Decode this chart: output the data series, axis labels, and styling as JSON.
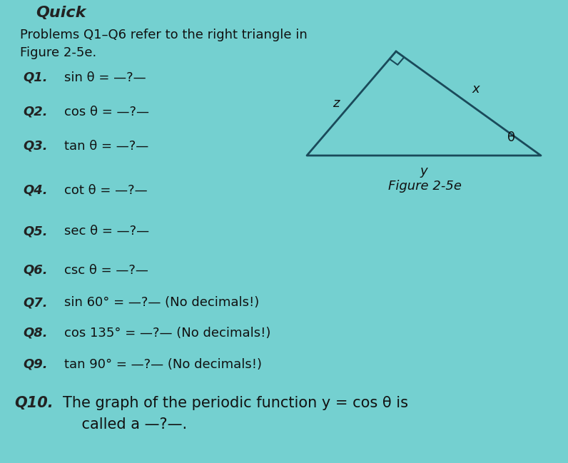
{
  "background_color": "#74d0d0",
  "intro_line1": "Problems Q1–Q6 refer to the right triangle in",
  "intro_line2": "Figure 2-5e.",
  "questions": [
    {
      "label": "Q1.",
      "text": "sin θ = —?—"
    },
    {
      "label": "Q2.",
      "text": "cos θ = —?—"
    },
    {
      "label": "Q3.",
      "text": "tan θ = —?—"
    },
    {
      "label": "Q4.",
      "text": "cot θ = —?—"
    },
    {
      "label": "Q5.",
      "text": "sec θ = —?—"
    },
    {
      "label": "Q6.",
      "text": "csc θ = —?—"
    },
    {
      "label": "Q7.",
      "text": "sin 60° = —?— (No decimals!)"
    },
    {
      "label": "Q8.",
      "text": "cos 135° = —?— (No decimals!)"
    },
    {
      "label": "Q9.",
      "text": "tan 90° = —?— (No decimals!)"
    },
    {
      "label": "Q10.",
      "text": "The graph of the periodic function y = cos θ is"
    },
    {
      "label": "",
      "text": "    called a —?—."
    }
  ],
  "figure_label": "Figure 2-5e",
  "tri_color": "#1a4a5a",
  "tri_linewidth": 2.0,
  "label_color": "#111111",
  "q_label_color": "#333333",
  "intro_fontsize": 13,
  "q_label_fontsize": 13,
  "q_text_fontsize": 13,
  "fig_label_fontsize": 13,
  "tri_label_fontsize": 13,
  "q10_label_fontsize": 15
}
